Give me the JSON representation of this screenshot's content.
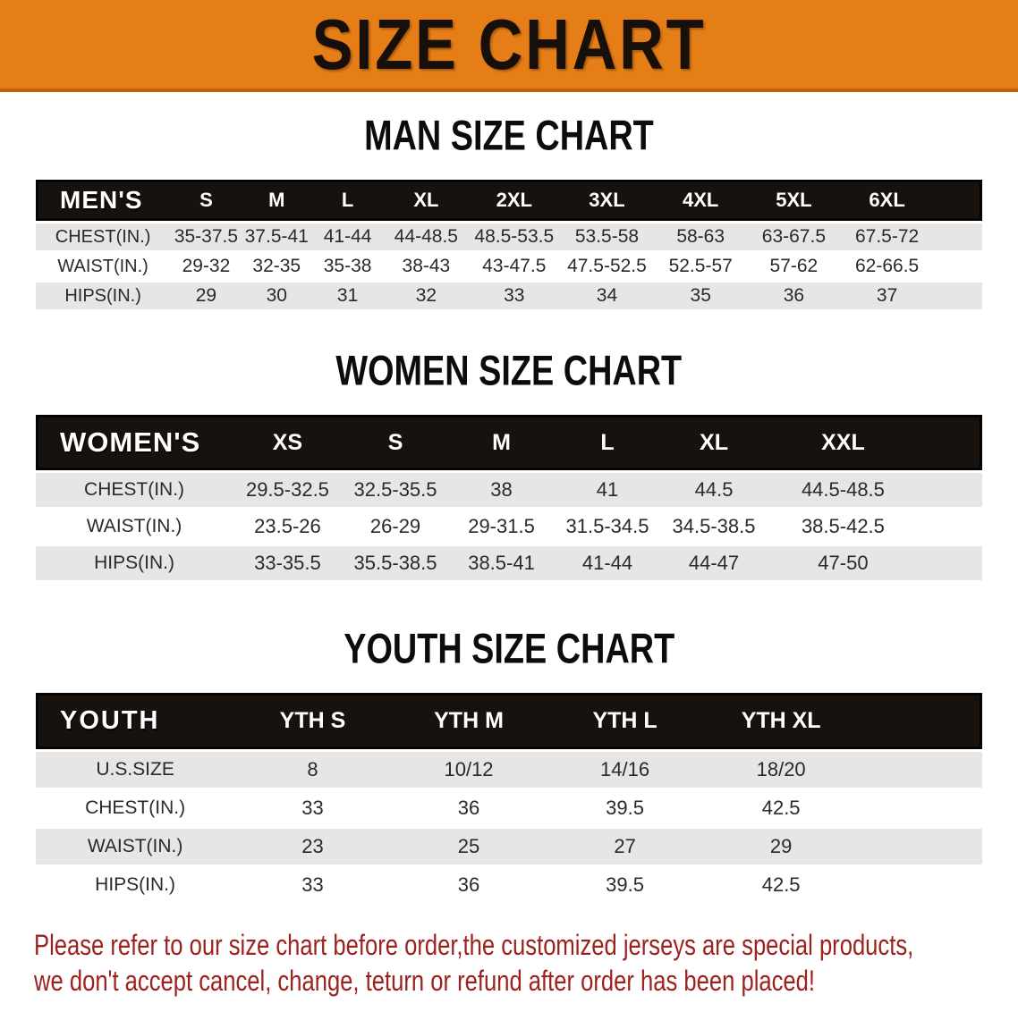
{
  "banner": {
    "title": "SIZE CHART",
    "bg_color": "#e67e17",
    "text_color": "#17100a"
  },
  "sections": [
    {
      "id": "men",
      "heading": "MAN SIZE CHART",
      "table": {
        "label": "MEN'S",
        "columns": [
          "S",
          "M",
          "L",
          "XL",
          "2XL",
          "3XL",
          "4XL",
          "5XL",
          "6XL"
        ],
        "rows": [
          {
            "label": "CHEST(IN.)",
            "values": [
              "35-37.5",
              "37.5-41",
              "41-44",
              "44-48.5",
              "48.5-53.5",
              "53.5-58",
              "58-63",
              "63-67.5",
              "67.5-72"
            ]
          },
          {
            "label": "WAIST(IN.)",
            "values": [
              "29-32",
              "32-35",
              "35-38",
              "38-43",
              "43-47.5",
              "47.5-52.5",
              "52.5-57",
              "57-62",
              "62-66.5"
            ]
          },
          {
            "label": "HIPS(IN.)",
            "values": [
              "29",
              "30",
              "31",
              "32",
              "33",
              "34",
              "35",
              "36",
              "37"
            ]
          }
        ]
      }
    },
    {
      "id": "women",
      "heading": "WOMEN SIZE CHART",
      "table": {
        "label": "WOMEN'S",
        "columns": [
          "XS",
          "S",
          "M",
          "L",
          "XL",
          "XXL"
        ],
        "rows": [
          {
            "label": "CHEST(IN.)",
            "values": [
              "29.5-32.5",
              "32.5-35.5",
              "38",
              "41",
              "44.5",
              "44.5-48.5"
            ]
          },
          {
            "label": "WAIST(IN.)",
            "values": [
              "23.5-26",
              "26-29",
              "29-31.5",
              "31.5-34.5",
              "34.5-38.5",
              "38.5-42.5"
            ]
          },
          {
            "label": "HIPS(IN.)",
            "values": [
              "33-35.5",
              "35.5-38.5",
              "38.5-41",
              "41-44",
              "44-47",
              "47-50"
            ]
          }
        ]
      }
    },
    {
      "id": "youth",
      "heading": "YOUTH SIZE CHART",
      "table": {
        "label": "YOUTH",
        "columns": [
          "YTH S",
          "YTH M",
          "YTH L",
          "YTH XL"
        ],
        "rows": [
          {
            "label": "U.S.SIZE",
            "values": [
              "8",
              "10/12",
              "14/16",
              "18/20"
            ]
          },
          {
            "label": "CHEST(IN.)",
            "values": [
              "33",
              "36",
              "39.5",
              "42.5"
            ]
          },
          {
            "label": "WAIST(IN.)",
            "values": [
              "23",
              "25",
              "27",
              "29"
            ]
          },
          {
            "label": "HIPS(IN.)",
            "values": [
              "33",
              "36",
              "39.5",
              "42.5"
            ]
          }
        ]
      }
    }
  ],
  "footer": {
    "line1": "Please refer to our size chart before order,the customized jerseys are special products,",
    "line2": "we don't accept cancel, change, teturn or refund after order has been placed!"
  }
}
